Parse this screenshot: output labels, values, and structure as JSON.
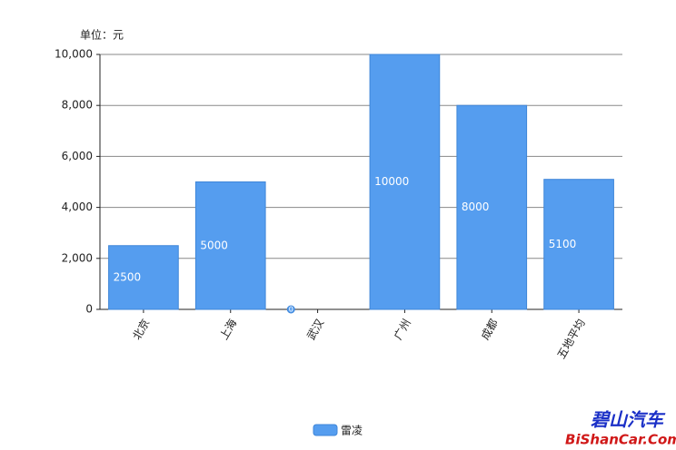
{
  "chart_data": {
    "type": "bar",
    "unit_label": "单位：元",
    "categories": [
      "北京",
      "上海",
      "武汉",
      "广州",
      "成都",
      "五地平均"
    ],
    "series": [
      {
        "name": "雷凌",
        "color": "#559def",
        "values": [
          2500,
          5000,
          0,
          10000,
          8000,
          5100
        ]
      }
    ],
    "ylim": [
      0,
      10000
    ],
    "yticks": [
      0,
      {
        "value": 2000,
        "label": "2,000"
      },
      {
        "value": 4000,
        "label": "4,000"
      },
      {
        "value": 6000,
        "label": "6,000"
      },
      {
        "value": 8000,
        "label": "8,000"
      },
      {
        "value": 10000,
        "label": "10,000"
      }
    ],
    "grid": true,
    "legend": "bottom",
    "watermark": {
      "title": "碧山汽车",
      "site": "BiShanCar.Com"
    }
  }
}
